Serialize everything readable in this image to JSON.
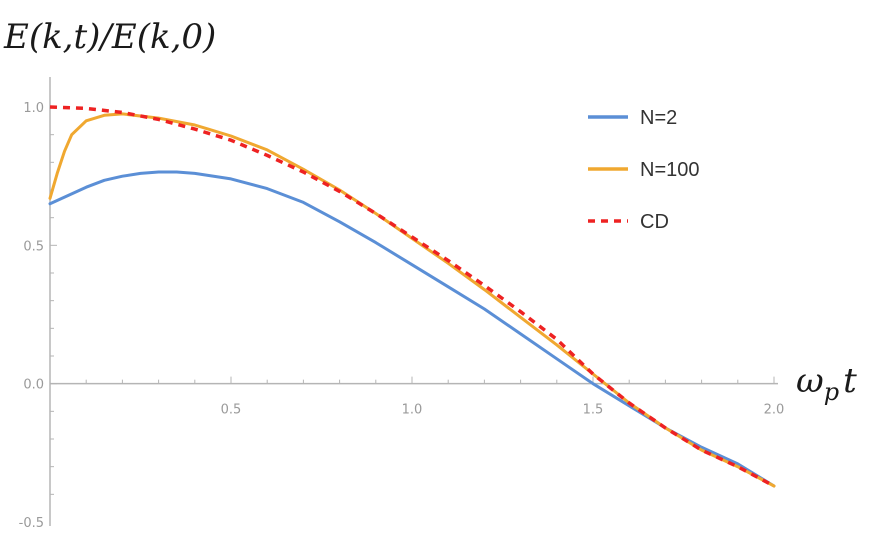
{
  "chart_data": {
    "type": "line",
    "ylabel": "E(k,t)/E(k,0)",
    "xlabel_main": "ω",
    "xlabel_sub": "p",
    "xlabel_tail": "t",
    "xlim": [
      0,
      2.0
    ],
    "ylim": [
      -0.5,
      1.0
    ],
    "grid": false,
    "legend_position": "top-right",
    "x_ticks": [
      {
        "value": 0.5,
        "label": "0.5"
      },
      {
        "value": 1.0,
        "label": "1.0"
      },
      {
        "value": 1.5,
        "label": "1.5"
      },
      {
        "value": 2.0,
        "label": "2.0"
      }
    ],
    "y_ticks": [
      {
        "value": 1.0,
        "label": "1.0"
      },
      {
        "value": 0.5,
        "label": "0.5"
      },
      {
        "value": 0.0,
        "label": "0.0"
      },
      {
        "value": -0.5,
        "label": "-0.5"
      }
    ],
    "series": [
      {
        "name": "N=2",
        "color": "#5b8fd6",
        "style": "solid",
        "points": [
          [
            0.0,
            0.65
          ],
          [
            0.05,
            0.68
          ],
          [
            0.1,
            0.71
          ],
          [
            0.15,
            0.735
          ],
          [
            0.2,
            0.75
          ],
          [
            0.25,
            0.76
          ],
          [
            0.3,
            0.765
          ],
          [
            0.35,
            0.765
          ],
          [
            0.4,
            0.76
          ],
          [
            0.5,
            0.74
          ],
          [
            0.6,
            0.705
          ],
          [
            0.7,
            0.655
          ],
          [
            0.8,
            0.585
          ],
          [
            0.9,
            0.51
          ],
          [
            1.0,
            0.43
          ],
          [
            1.1,
            0.35
          ],
          [
            1.2,
            0.27
          ],
          [
            1.3,
            0.18
          ],
          [
            1.4,
            0.09
          ],
          [
            1.5,
            0.0
          ],
          [
            1.6,
            -0.08
          ],
          [
            1.7,
            -0.16
          ],
          [
            1.8,
            -0.23
          ],
          [
            1.9,
            -0.29
          ],
          [
            2.0,
            -0.37
          ]
        ]
      },
      {
        "name": "N=100",
        "color": "#f0a830",
        "style": "solid",
        "points": [
          [
            0.0,
            0.67
          ],
          [
            0.02,
            0.76
          ],
          [
            0.04,
            0.84
          ],
          [
            0.06,
            0.9
          ],
          [
            0.1,
            0.95
          ],
          [
            0.15,
            0.97
          ],
          [
            0.2,
            0.975
          ],
          [
            0.3,
            0.96
          ],
          [
            0.4,
            0.935
          ],
          [
            0.5,
            0.895
          ],
          [
            0.6,
            0.845
          ],
          [
            0.7,
            0.775
          ],
          [
            0.8,
            0.7
          ],
          [
            0.9,
            0.615
          ],
          [
            1.0,
            0.525
          ],
          [
            1.1,
            0.435
          ],
          [
            1.2,
            0.34
          ],
          [
            1.3,
            0.24
          ],
          [
            1.4,
            0.14
          ],
          [
            1.5,
            0.035
          ],
          [
            1.6,
            -0.07
          ],
          [
            1.7,
            -0.16
          ],
          [
            1.8,
            -0.24
          ],
          [
            1.9,
            -0.3
          ],
          [
            2.0,
            -0.37
          ]
        ]
      },
      {
        "name": "CD",
        "color": "#ee2222",
        "style": "dashed",
        "points": [
          [
            0.0,
            1.0
          ],
          [
            0.1,
            0.995
          ],
          [
            0.2,
            0.98
          ],
          [
            0.3,
            0.955
          ],
          [
            0.4,
            0.92
          ],
          [
            0.5,
            0.88
          ],
          [
            0.6,
            0.825
          ],
          [
            0.7,
            0.765
          ],
          [
            0.8,
            0.695
          ],
          [
            0.9,
            0.615
          ],
          [
            1.0,
            0.53
          ],
          [
            1.1,
            0.445
          ],
          [
            1.2,
            0.355
          ],
          [
            1.3,
            0.26
          ],
          [
            1.4,
            0.16
          ],
          [
            1.5,
            0.035
          ],
          [
            1.6,
            -0.07
          ],
          [
            1.7,
            -0.16
          ],
          [
            1.8,
            -0.24
          ],
          [
            1.9,
            -0.3
          ],
          [
            2.0,
            -0.37
          ]
        ]
      }
    ]
  }
}
